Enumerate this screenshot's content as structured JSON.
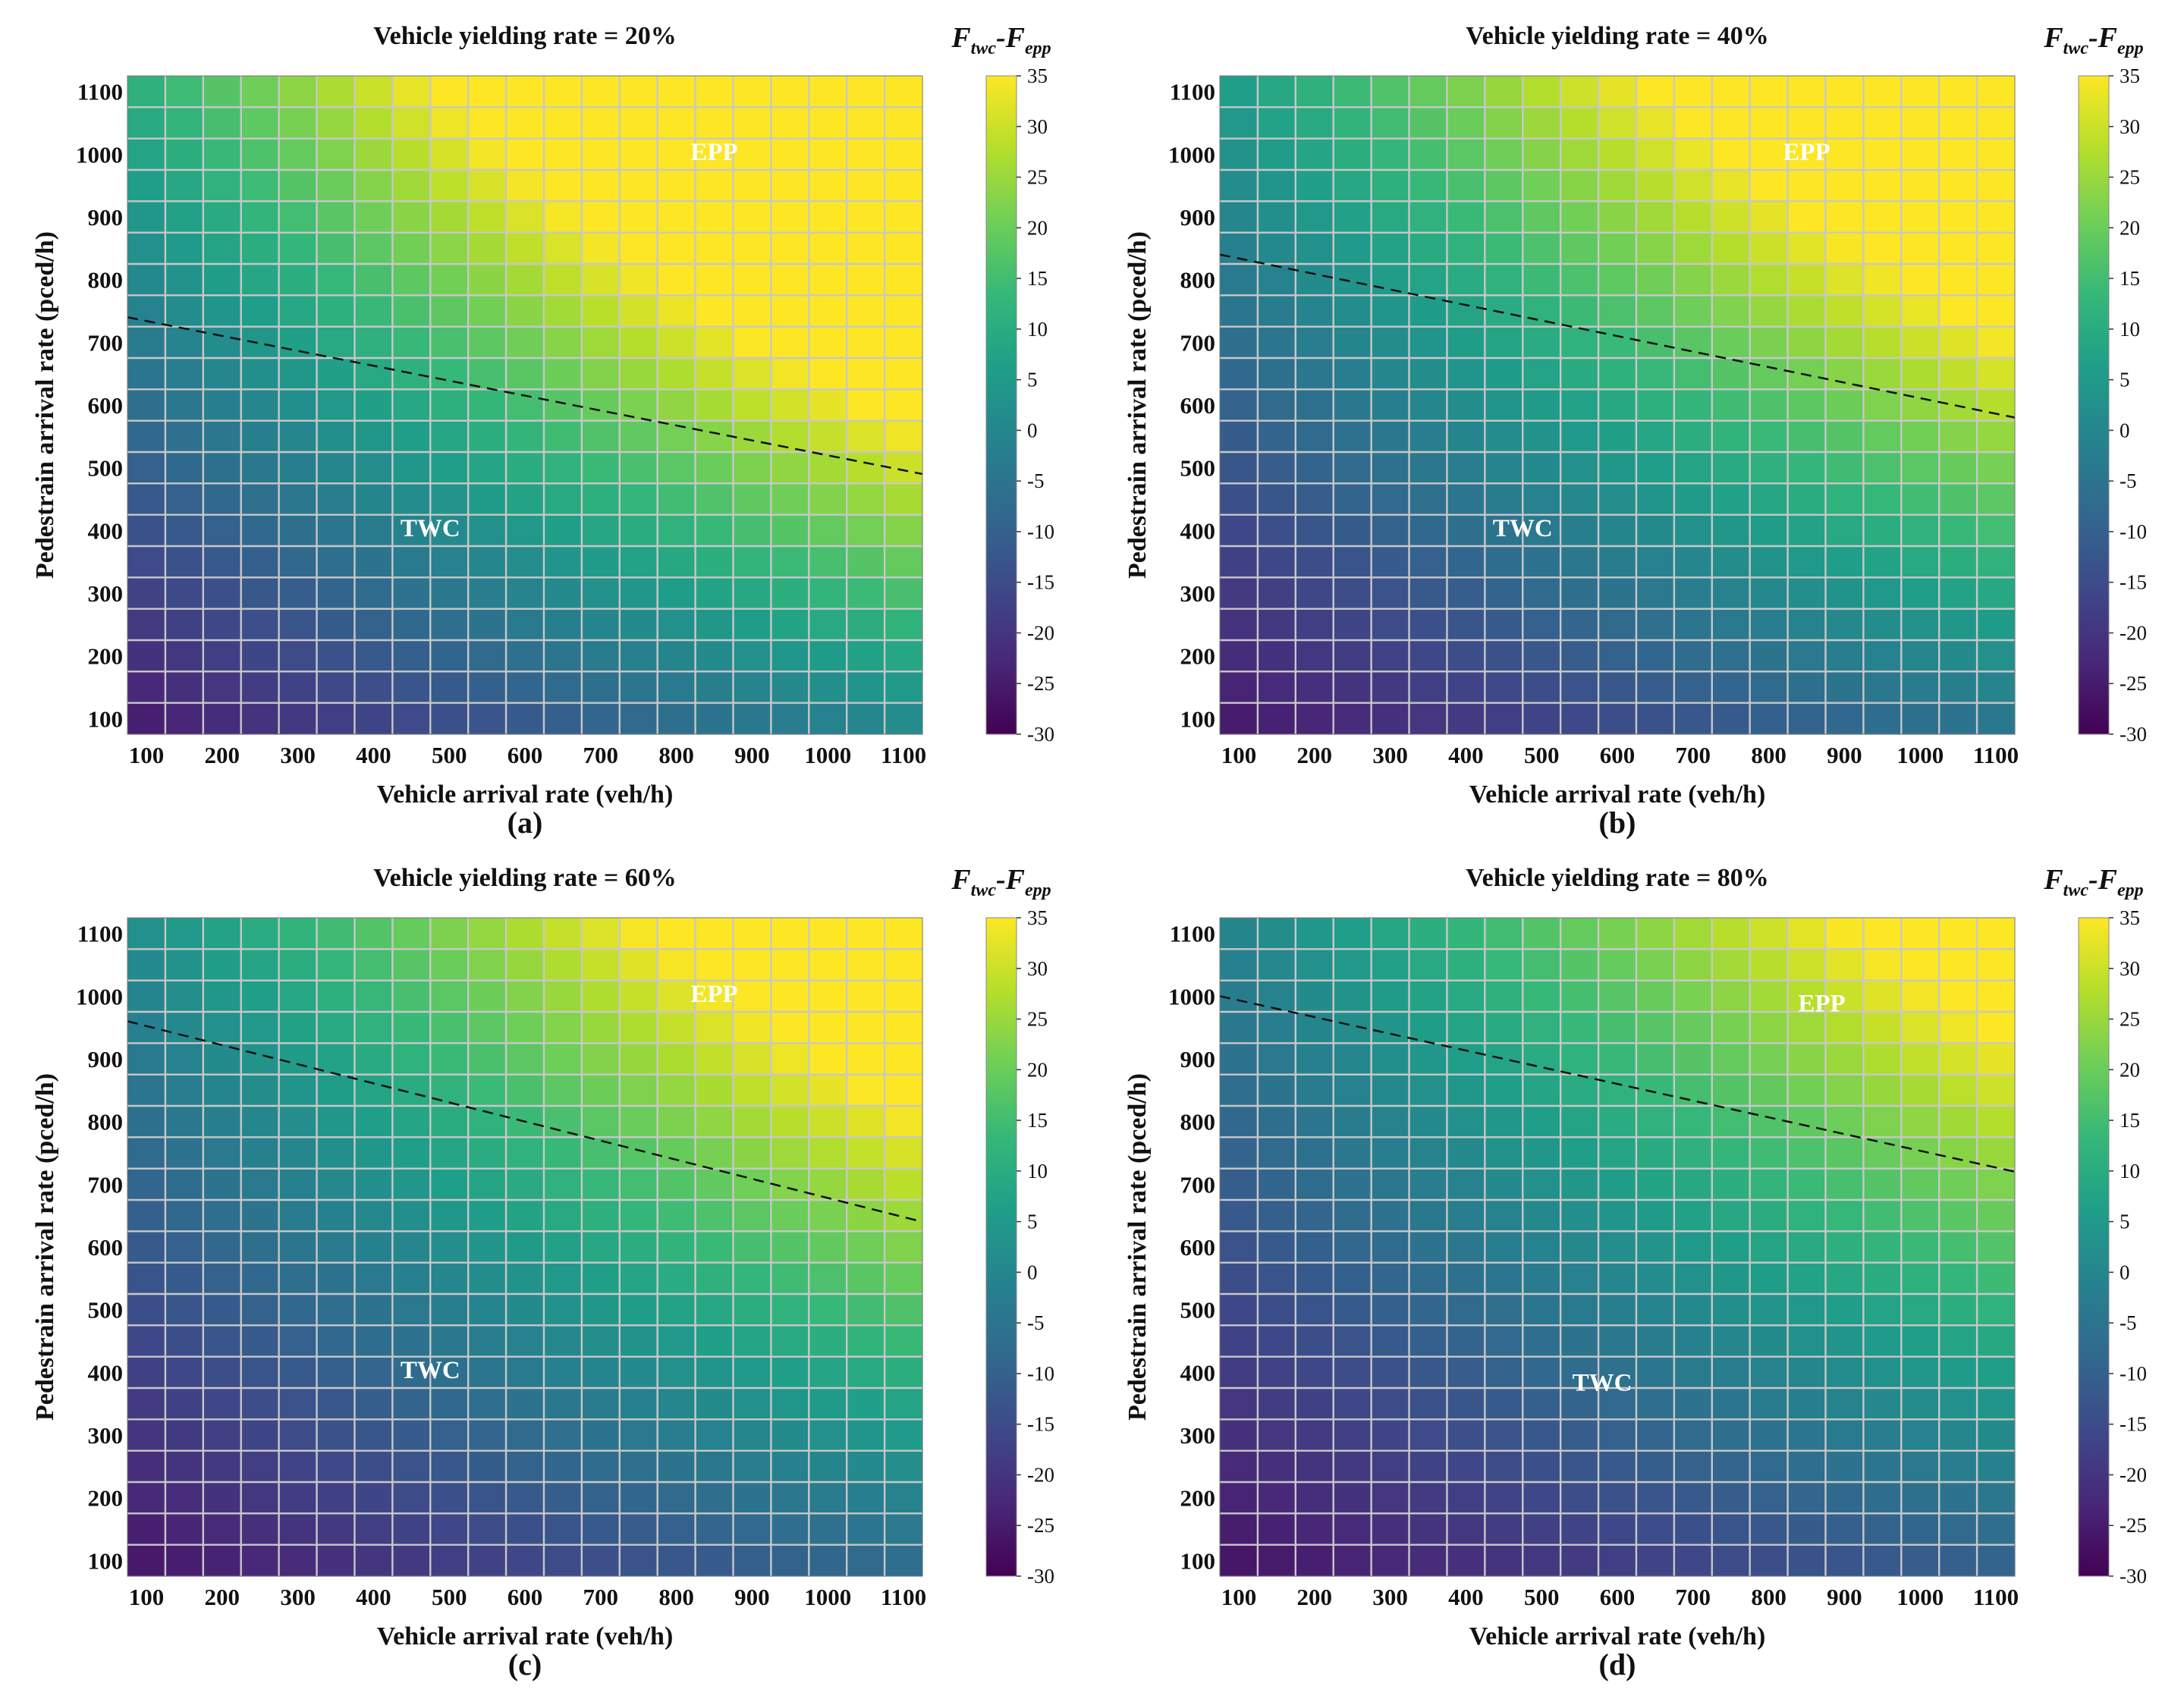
{
  "chart_data": [
    {
      "type": "heatmap",
      "title": "Vehicle yielding rate = 20%",
      "xlabel": "Vehicle arrival rate (veh/h)",
      "ylabel": "Pedestrain arrival rate (pced/h)",
      "panel_label": "(a)",
      "x_ticks": [
        "100",
        "200",
        "300",
        "400",
        "500",
        "600",
        "700",
        "800",
        "900",
        "1000",
        "1100"
      ],
      "y_ticks": [
        "100",
        "200",
        "300",
        "400",
        "500",
        "600",
        "700",
        "800",
        "900",
        "1000",
        "1100"
      ],
      "xlim": [
        75,
        1125
      ],
      "ylim": [
        75,
        1125
      ],
      "grid": true,
      "colorbar": {
        "title_main_1": "F",
        "title_sub_1": "twc",
        "title_dash": "-",
        "title_main_2": "F",
        "title_sub_2": "epp",
        "range": [
          -30,
          35
        ],
        "ticks": [
          "35",
          "30",
          "25",
          "20",
          "15",
          "10",
          "5",
          "0",
          "-5",
          "-10",
          "-15",
          "-20",
          "-25",
          "-30"
        ]
      },
      "boundary": {
        "x": [
          75,
          1125
        ],
        "y": [
          740,
          490
        ]
      },
      "regions": [
        {
          "label": "EPP",
          "x": 850,
          "y": 1000
        },
        {
          "label": "TWC",
          "x": 475,
          "y": 400
        }
      ],
      "z_model": {
        "base": -30,
        "cx": 0.022,
        "cy": 0.032,
        "cxy": 3.6e-05,
        "scale": 75,
        "zmin": -30,
        "zmax": 35
      }
    },
    {
      "type": "heatmap",
      "title": "Vehicle yielding rate = 40%",
      "xlabel": "Vehicle arrival rate (veh/h)",
      "ylabel": "Pedestrain arrival rate (pced/h)",
      "panel_label": "(b)",
      "x_ticks": [
        "100",
        "200",
        "300",
        "400",
        "500",
        "600",
        "700",
        "800",
        "900",
        "1000",
        "1100"
      ],
      "y_ticks": [
        "100",
        "200",
        "300",
        "400",
        "500",
        "600",
        "700",
        "800",
        "900",
        "1000",
        "1100"
      ],
      "xlim": [
        75,
        1125
      ],
      "ylim": [
        75,
        1125
      ],
      "grid": true,
      "colorbar": {
        "title_main_1": "F",
        "title_sub_1": "twc",
        "title_dash": "-",
        "title_main_2": "F",
        "title_sub_2": "epp",
        "range": [
          -30,
          35
        ],
        "ticks": [
          "35",
          "30",
          "25",
          "20",
          "15",
          "10",
          "5",
          "0",
          "-5",
          "-10",
          "-15",
          "-20",
          "-25",
          "-30"
        ]
      },
      "boundary": {
        "x": [
          75,
          1125
        ],
        "y": [
          840,
          580
        ]
      },
      "regions": [
        {
          "label": "EPP",
          "x": 850,
          "y": 1000
        },
        {
          "label": "TWC",
          "x": 475,
          "y": 400
        }
      ],
      "z_model": {
        "base": -30,
        "cx": 0.018,
        "cy": 0.028,
        "cxy": 3.2e-05,
        "scale": 75,
        "zmin": -30,
        "zmax": 35
      }
    },
    {
      "type": "heatmap",
      "title": "Vehicle yielding rate = 60%",
      "xlabel": "Vehicle arrival rate (veh/h)",
      "ylabel": "Pedestrain arrival rate (pced/h)",
      "panel_label": "(c)",
      "x_ticks": [
        "100",
        "200",
        "300",
        "400",
        "500",
        "600",
        "700",
        "800",
        "900",
        "1000",
        "1100"
      ],
      "y_ticks": [
        "100",
        "200",
        "300",
        "400",
        "500",
        "600",
        "700",
        "800",
        "900",
        "1000",
        "1100"
      ],
      "xlim": [
        75,
        1125
      ],
      "ylim": [
        75,
        1125
      ],
      "grid": true,
      "colorbar": {
        "title_main_1": "F",
        "title_sub_1": "twc",
        "title_dash": "-",
        "title_main_2": "F",
        "title_sub_2": "epp",
        "range": [
          -30,
          35
        ],
        "ticks": [
          "35",
          "30",
          "25",
          "20",
          "15",
          "10",
          "5",
          "0",
          "-5",
          "-10",
          "-15",
          "-20",
          "-25",
          "-30"
        ]
      },
      "boundary": {
        "x": [
          75,
          1125
        ],
        "y": [
          960,
          640
        ]
      },
      "regions": [
        {
          "label": "EPP",
          "x": 850,
          "y": 1000
        },
        {
          "label": "TWC",
          "x": 475,
          "y": 400
        }
      ],
      "z_model": {
        "base": -30,
        "cx": 0.016,
        "cy": 0.025,
        "cxy": 3e-05,
        "scale": 75,
        "zmin": -30,
        "zmax": 35
      }
    },
    {
      "type": "heatmap",
      "title": "Vehicle yielding rate = 80%",
      "xlabel": "Vehicle arrival rate (veh/h)",
      "ylabel": "Pedestrain arrival rate (pced/h)",
      "panel_label": "(d)",
      "x_ticks": [
        "100",
        "200",
        "300",
        "400",
        "500",
        "600",
        "700",
        "800",
        "900",
        "1000",
        "1100"
      ],
      "y_ticks": [
        "100",
        "200",
        "300",
        "400",
        "500",
        "600",
        "700",
        "800",
        "900",
        "1000",
        "1100"
      ],
      "xlim": [
        75,
        1125
      ],
      "ylim": [
        75,
        1125
      ],
      "grid": true,
      "colorbar": {
        "title_main_1": "F",
        "title_sub_1": "twc",
        "title_dash": "-",
        "title_main_2": "F",
        "title_sub_2": "epp",
        "range": [
          -30,
          35
        ],
        "ticks": [
          "35",
          "30",
          "25",
          "20",
          "15",
          "10",
          "5",
          "0",
          "-5",
          "-10",
          "-15",
          "-20",
          "-25",
          "-30"
        ]
      },
      "boundary": {
        "x": [
          75,
          1125
        ],
        "y": [
          1000,
          720
        ]
      },
      "regions": [
        {
          "label": "EPP",
          "x": 870,
          "y": 985
        },
        {
          "label": "TWC",
          "x": 580,
          "y": 380
        }
      ],
      "z_model": {
        "base": -30,
        "cx": 0.014,
        "cy": 0.023,
        "cxy": 2.7e-05,
        "scale": 75,
        "zmin": -30,
        "zmax": 35
      }
    }
  ],
  "colors": {
    "viridis": [
      "#440154",
      "#482878",
      "#3e4989",
      "#31688e",
      "#26828e",
      "#1f9e89",
      "#35b779",
      "#6ece58",
      "#b5de2b",
      "#fde725"
    ],
    "grid": "#c8c8c8",
    "boundary": "#111111",
    "region_text": "#ffffff"
  }
}
